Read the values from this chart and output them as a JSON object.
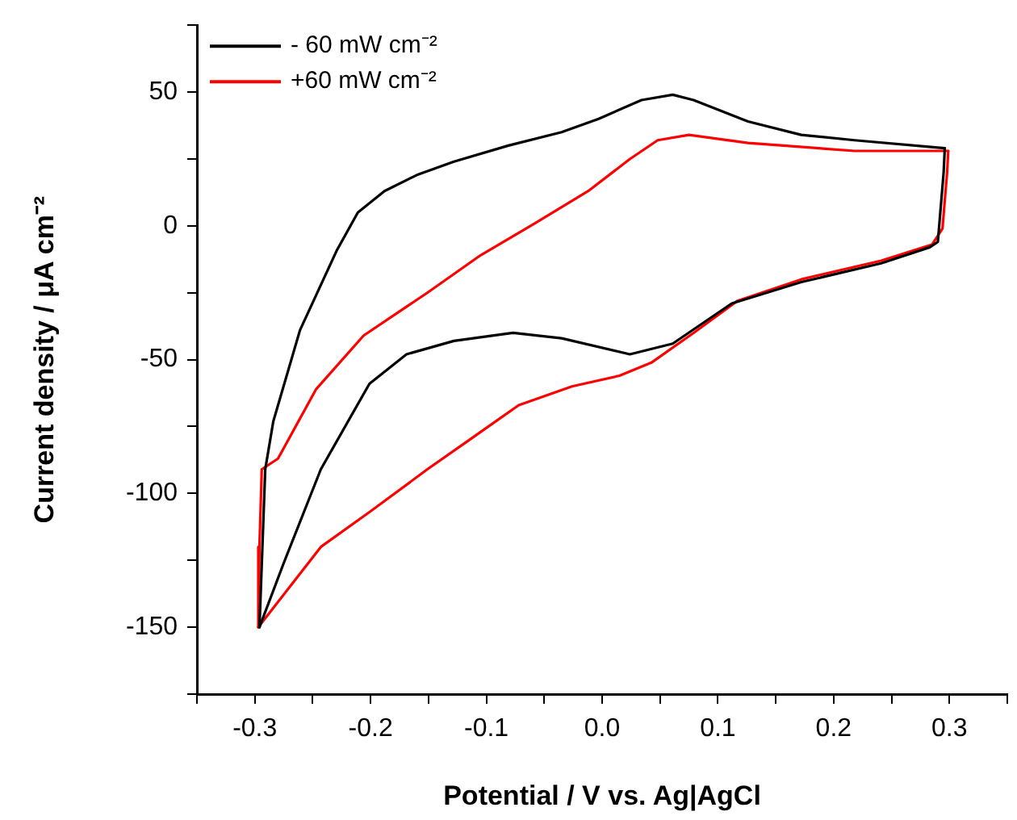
{
  "chart_data": {
    "type": "line",
    "xlabel": "Potential / V vs. Ag|AgCl",
    "ylabel": "Current density / μA cm⁻²",
    "xlim": [
      -0.35,
      0.35
    ],
    "ylim": [
      -175,
      75
    ],
    "xticks": [
      {
        "value": -0.35,
        "label": null
      },
      -0.3,
      {
        "value": -0.25,
        "label": null
      },
      -0.2,
      {
        "value": -0.15,
        "label": null
      },
      -0.1,
      {
        "value": -0.05,
        "label": null
      },
      {
        "value": 0,
        "label": "0.0"
      },
      {
        "value": 0.05,
        "label": null
      },
      0.1,
      {
        "value": 0.15,
        "label": null
      },
      0.2,
      {
        "value": 0.25,
        "label": null
      },
      0.3,
      {
        "value": 0.35,
        "label": null
      }
    ],
    "yticks": [
      {
        "value": -175,
        "label": null
      },
      -150,
      {
        "value": -125,
        "label": null
      },
      -100,
      {
        "value": -75,
        "label": null
      },
      -50,
      {
        "value": -25,
        "label": null
      },
      0,
      {
        "value": 25,
        "label": null
      },
      50,
      {
        "value": 75,
        "label": null
      }
    ],
    "legend": "top left",
    "grid": false,
    "series": [
      {
        "name": "- 60 mW cm⁻²",
        "color": "#000000",
        "x": [
          0.296,
          0.218,
          0.172,
          0.126,
          0.079,
          0.061,
          0.034,
          -0.003,
          -0.035,
          -0.081,
          -0.128,
          -0.16,
          -0.188,
          -0.211,
          -0.229,
          -0.261,
          -0.284,
          -0.291,
          -0.296
        ],
        "values": [
          29,
          32,
          34,
          39,
          47,
          49,
          47,
          40,
          35,
          30,
          24,
          19,
          13,
          5,
          -9,
          -39,
          -73,
          -91,
          -150
        ]
      },
      {
        "color": "#000000",
        "x": [
          -0.296,
          -0.275,
          -0.243,
          -0.201,
          -0.169,
          -0.128,
          -0.077,
          -0.035,
          0.024,
          0.061,
          0.112,
          0.172,
          0.241,
          0.283,
          0.29,
          0.295,
          0.296
        ],
        "values": [
          -150,
          -126,
          -91,
          -59,
          -48,
          -43,
          -40,
          -42,
          -48,
          -44,
          -29,
          -21,
          -14,
          -8,
          -6,
          20,
          29
        ]
      },
      {
        "name": "+60 mW cm⁻²",
        "color": "#ff0000",
        "x": [
          0.299,
          0.218,
          0.126,
          0.075,
          0.048,
          0.024,
          -0.012,
          -0.058,
          -0.105,
          -0.151,
          -0.206,
          -0.247,
          -0.28,
          -0.294,
          -0.296,
          -0.297
        ],
        "values": [
          28,
          28,
          31,
          34,
          32,
          25,
          13,
          1,
          -11,
          -25,
          -41,
          -61,
          -87,
          -91,
          -120,
          -150
        ]
      },
      {
        "color": "#ff0000",
        "x": [
          -0.297,
          -0.243,
          -0.201,
          -0.151,
          -0.118,
          -0.072,
          -0.026,
          0.015,
          0.043,
          0.079,
          0.117,
          0.172,
          0.241,
          0.285,
          0.294,
          0.298,
          0.299
        ],
        "values": [
          -150,
          -120,
          -107,
          -91,
          -81,
          -67,
          -60,
          -56,
          -51,
          -40,
          -28,
          -20,
          -13,
          -7,
          -1,
          20,
          28
        ]
      }
    ]
  }
}
